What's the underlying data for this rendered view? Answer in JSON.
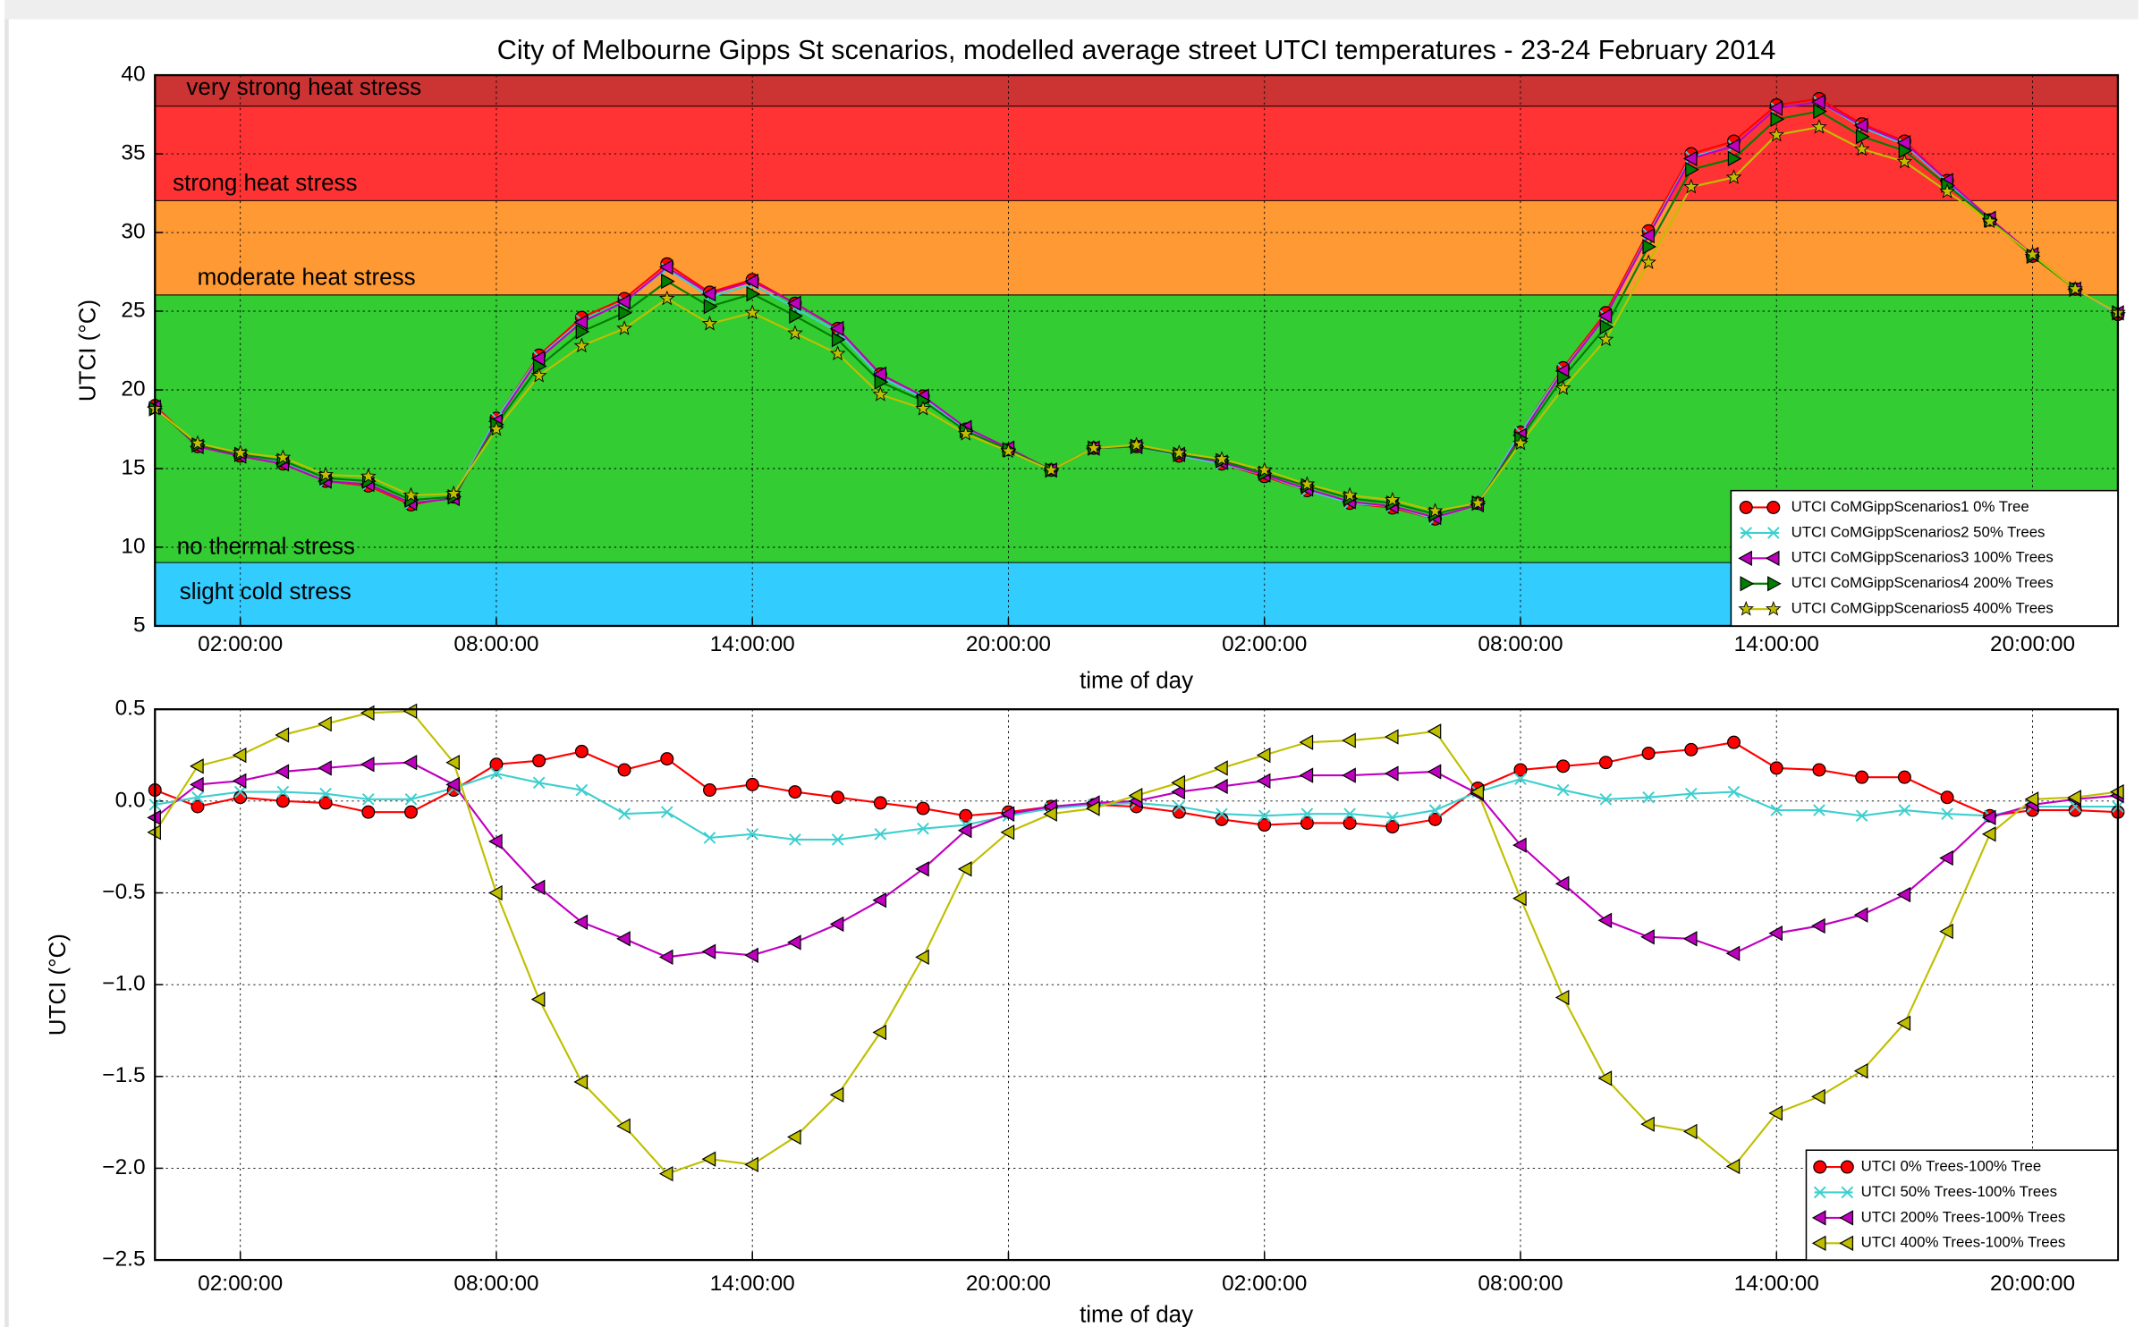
{
  "chart_data": [
    {
      "type": "line",
      "title": "City of Melbourne Gipps St scenarios, modelled average street UTCI temperatures - 23-24 February 2014",
      "xlabel": "time of day",
      "ylabel": "UTCI (°C)",
      "categories": [
        null,
        null,
        "02:00:00",
        null,
        null,
        null,
        null,
        null,
        "08:00:00",
        null,
        null,
        null,
        null,
        null,
        "14:00:00",
        null,
        null,
        null,
        null,
        null,
        "20:00:00",
        null,
        null,
        null,
        null,
        null,
        "02:00:00",
        null,
        null,
        null,
        null,
        null,
        "08:00:00",
        null,
        null,
        null,
        null,
        null,
        "14:00:00",
        null,
        null,
        null,
        null,
        null,
        "20:00:00",
        null,
        null
      ],
      "ylim": [
        5,
        40
      ],
      "yticks": [
        5,
        10,
        15,
        20,
        25,
        30,
        35,
        40
      ],
      "grid": true,
      "legend": "lower right",
      "bands": [
        {
          "from": 38,
          "to": 40,
          "label": "very strong heat stress",
          "color": "#cc3333"
        },
        {
          "from": 32,
          "to": 38,
          "label": "strong heat stress",
          "color": "#ff3333"
        },
        {
          "from": 26,
          "to": 32,
          "label": "moderate heat stress",
          "color": "#ff9933"
        },
        {
          "from": 9,
          "to": 26,
          "label": "no thermal stress",
          "color": "#33cc33"
        },
        {
          "from": 5,
          "to": 9,
          "label": "slight cold stress",
          "color": "#33ccff"
        }
      ],
      "series": [
        {
          "name": "UTCI CoMGippScenarios1 0% Tree",
          "color": "#ff0000",
          "marker": "o",
          "values": [
            19.0,
            16.4,
            15.8,
            15.3,
            14.2,
            13.9,
            12.7,
            13.2,
            18.2,
            22.2,
            24.6,
            25.8,
            28.0,
            26.2,
            27.0,
            25.5,
            23.9,
            21.0,
            19.6,
            17.5,
            16.2,
            14.9,
            16.3,
            16.4,
            15.8,
            15.3,
            14.5,
            13.6,
            12.8,
            12.5,
            11.8,
            12.8,
            17.3,
            21.4,
            24.9,
            30.1,
            35.0,
            35.8,
            38.1,
            38.5,
            36.9,
            35.8,
            33.3,
            30.8,
            28.5,
            26.4,
            24.8
          ]
        },
        {
          "name": "UTCI CoMGippScenarios2 50% Trees",
          "color": "#3fcfcf",
          "marker": "x",
          "values": [
            18.9,
            16.4,
            15.8,
            15.4,
            14.2,
            14.0,
            12.8,
            13.2,
            18.2,
            22.1,
            24.4,
            25.6,
            27.7,
            25.9,
            26.7,
            25.2,
            23.7,
            20.8,
            19.5,
            17.5,
            16.2,
            14.9,
            16.3,
            16.4,
            15.8,
            15.3,
            14.6,
            13.6,
            12.8,
            12.6,
            11.8,
            12.8,
            17.3,
            21.3,
            24.7,
            29.9,
            34.8,
            35.5,
            37.9,
            38.3,
            36.7,
            35.6,
            33.2,
            30.8,
            28.5,
            26.4,
            24.8
          ]
        },
        {
          "name": "UTCI CoMGippScenarios3 100% Trees",
          "color": "#bf00bf",
          "marker": "<",
          "values": [
            18.9,
            16.4,
            15.8,
            15.3,
            14.2,
            14.0,
            12.8,
            13.1,
            18.0,
            22.0,
            24.3,
            25.6,
            27.8,
            26.1,
            26.9,
            25.5,
            23.9,
            21.0,
            19.6,
            17.6,
            16.3,
            14.9,
            16.3,
            16.4,
            15.9,
            15.4,
            14.6,
            13.7,
            12.9,
            12.6,
            11.9,
            12.7,
            17.1,
            21.2,
            24.7,
            29.8,
            34.7,
            35.5,
            37.9,
            38.3,
            36.8,
            35.7,
            33.3,
            30.9,
            28.6,
            26.4,
            24.9
          ]
        },
        {
          "name": "UTCI CoMGippScenarios4 200% Trees",
          "color": "#007f00",
          "marker": ">",
          "values": [
            18.8,
            16.5,
            15.9,
            15.5,
            14.4,
            14.2,
            13.0,
            13.2,
            17.8,
            21.5,
            23.7,
            24.9,
            26.9,
            25.3,
            26.1,
            24.7,
            23.2,
            20.5,
            19.3,
            17.4,
            16.2,
            14.9,
            16.3,
            16.4,
            15.9,
            15.5,
            14.7,
            13.9,
            13.1,
            12.8,
            12.1,
            12.8,
            16.9,
            20.8,
            24.0,
            29.1,
            34.0,
            34.7,
            37.2,
            37.7,
            36.1,
            35.2,
            33.0,
            30.8,
            28.5,
            26.4,
            24.9
          ]
        },
        {
          "name": "UTCI CoMGippScenarios5 400% Trees",
          "color": "#bfbf00",
          "marker": "*",
          "values": [
            18.8,
            16.6,
            16.0,
            15.7,
            14.6,
            14.5,
            13.3,
            13.4,
            17.5,
            20.9,
            22.8,
            23.9,
            25.8,
            24.2,
            24.9,
            23.6,
            22.3,
            19.7,
            18.8,
            17.2,
            16.1,
            14.9,
            16.3,
            16.5,
            16.0,
            15.6,
            14.9,
            14.0,
            13.3,
            13.0,
            12.3,
            12.8,
            16.6,
            20.1,
            23.2,
            28.1,
            32.9,
            33.5,
            36.2,
            36.7,
            35.3,
            34.5,
            32.6,
            30.7,
            28.6,
            26.4,
            24.9
          ]
        }
      ]
    },
    {
      "type": "line",
      "xlabel": "time of day",
      "ylabel": "UTCI (°C)",
      "categories": [
        null,
        null,
        "02:00:00",
        null,
        null,
        null,
        null,
        null,
        "08:00:00",
        null,
        null,
        null,
        null,
        null,
        "14:00:00",
        null,
        null,
        null,
        null,
        null,
        "20:00:00",
        null,
        null,
        null,
        null,
        null,
        "02:00:00",
        null,
        null,
        null,
        null,
        null,
        "08:00:00",
        null,
        null,
        null,
        null,
        null,
        "14:00:00",
        null,
        null,
        null,
        null,
        null,
        "20:00:00",
        null,
        null
      ],
      "ylim": [
        -2.5,
        0.5
      ],
      "yticks": [
        {
          "value": -2.5,
          "label": "−2.5"
        },
        {
          "value": -2,
          "label": "−2.0"
        },
        {
          "value": -1.5,
          "label": "−1.5"
        },
        {
          "value": -1,
          "label": "−1.0"
        },
        {
          "value": -0.5,
          "label": "−0.5"
        },
        {
          "value": 0,
          "label": "0.0"
        },
        0.5
      ],
      "grid": true,
      "legend": "lower right",
      "series": [
        {
          "name": "UTCI 0% Trees-100% Tree",
          "color": "#ff0000",
          "marker": "o",
          "values": [
            0.06,
            -0.03,
            0.02,
            0.0,
            -0.01,
            -0.06,
            -0.06,
            0.06,
            0.2,
            0.22,
            0.27,
            0.17,
            0.23,
            0.06,
            0.09,
            0.05,
            0.02,
            -0.01,
            -0.04,
            -0.08,
            -0.06,
            -0.03,
            -0.02,
            -0.03,
            -0.06,
            -0.1,
            -0.13,
            -0.12,
            -0.12,
            -0.14,
            -0.1,
            0.07,
            0.17,
            0.19,
            0.21,
            0.26,
            0.28,
            0.32,
            0.18,
            0.17,
            0.13,
            0.13,
            0.02,
            -0.08,
            -0.05,
            -0.05,
            -0.06
          ]
        },
        {
          "name": "UTCI 50% Trees-100% Trees",
          "color": "#3fcfcf",
          "marker": "x",
          "values": [
            -0.02,
            0.02,
            0.05,
            0.05,
            0.04,
            0.01,
            0.01,
            0.07,
            0.15,
            0.1,
            0.06,
            -0.07,
            -0.06,
            -0.2,
            -0.18,
            -0.21,
            -0.21,
            -0.18,
            -0.15,
            -0.13,
            -0.08,
            -0.04,
            -0.02,
            -0.01,
            -0.03,
            -0.07,
            -0.08,
            -0.07,
            -0.07,
            -0.09,
            -0.05,
            0.05,
            0.12,
            0.06,
            0.01,
            0.02,
            0.04,
            0.05,
            -0.05,
            -0.05,
            -0.08,
            -0.05,
            -0.07,
            -0.08,
            -0.03,
            -0.03,
            -0.03
          ]
        },
        {
          "name": "UTCI 200% Trees-100% Trees",
          "color": "#bf00bf",
          "marker": "<",
          "values": [
            -0.09,
            0.09,
            0.11,
            0.16,
            0.18,
            0.2,
            0.21,
            0.09,
            -0.22,
            -0.47,
            -0.66,
            -0.75,
            -0.85,
            -0.82,
            -0.84,
            -0.77,
            -0.67,
            -0.54,
            -0.37,
            -0.16,
            -0.07,
            -0.03,
            -0.01,
            0.0,
            0.05,
            0.08,
            0.11,
            0.14,
            0.14,
            0.15,
            0.16,
            0.04,
            -0.24,
            -0.45,
            -0.65,
            -0.74,
            -0.75,
            -0.83,
            -0.72,
            -0.68,
            -0.62,
            -0.51,
            -0.31,
            -0.09,
            -0.02,
            0.01,
            0.03
          ]
        },
        {
          "name": "UTCI 400% Trees-100% Trees",
          "color": "#bfbf00",
          "marker": "<",
          "values": [
            -0.17,
            0.19,
            0.25,
            0.36,
            0.42,
            0.48,
            0.49,
            0.21,
            -0.5,
            -1.08,
            -1.53,
            -1.77,
            -2.03,
            -1.95,
            -1.98,
            -1.83,
            -1.6,
            -1.26,
            -0.85,
            -0.37,
            -0.17,
            -0.07,
            -0.04,
            0.03,
            0.1,
            0.18,
            0.25,
            0.32,
            0.33,
            0.35,
            0.38,
            0.05,
            -0.53,
            -1.07,
            -1.51,
            -1.76,
            -1.8,
            -1.99,
            -1.7,
            -1.61,
            -1.47,
            -1.21,
            -0.71,
            -0.18,
            0.01,
            0.02,
            0.05
          ]
        }
      ]
    }
  ]
}
